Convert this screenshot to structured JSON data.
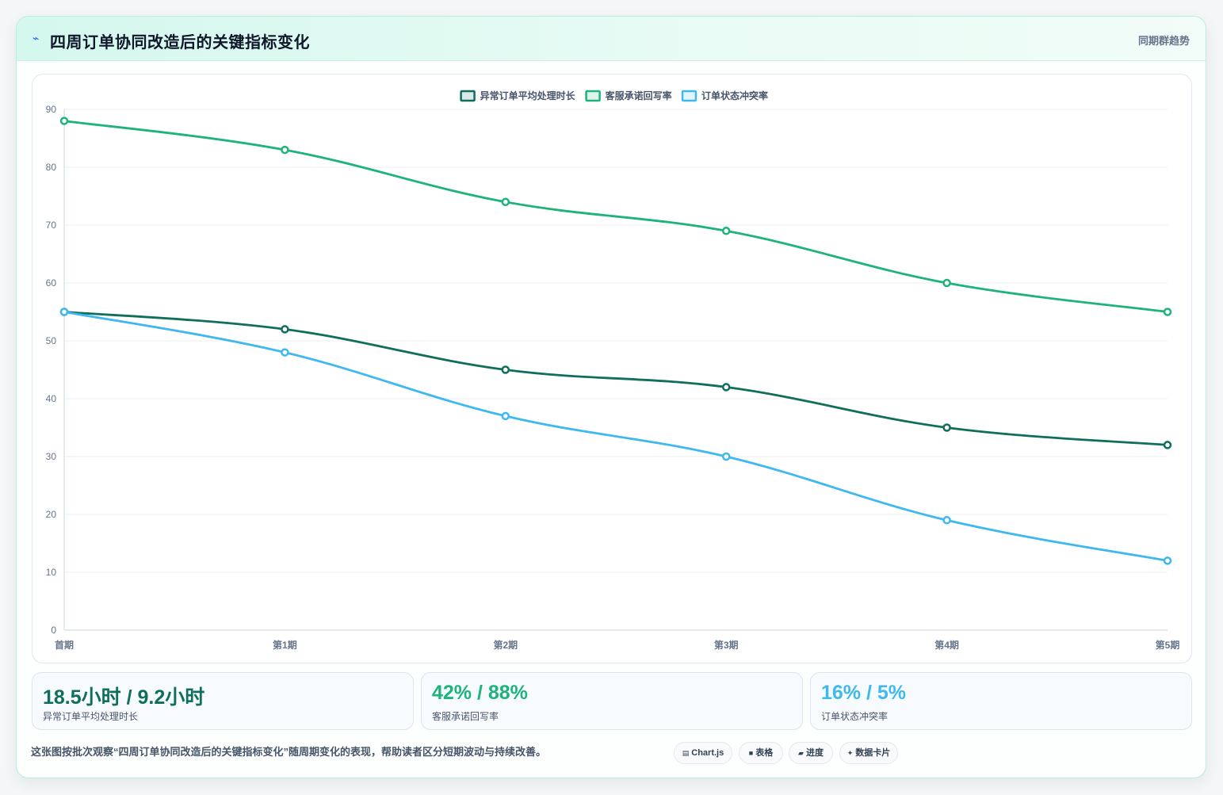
{
  "header": {
    "title_icon": "trend-spark-icon",
    "title": "四周订单协同改造后的关键指标变化",
    "subtitle": "同期群趋势"
  },
  "colors": {
    "series1": "#0f6e5c",
    "series2": "#1db37a",
    "series3": "#3fb8ef"
  },
  "chart_data": {
    "type": "line",
    "categories": [
      "首期",
      "第1期",
      "第2期",
      "第3期",
      "第4期",
      "第5期"
    ],
    "ylim": [
      0,
      90
    ],
    "yticks": [
      0,
      10,
      20,
      30,
      40,
      50,
      60,
      70,
      80,
      90
    ],
    "grid": true,
    "legend_position": "top-center",
    "series": [
      {
        "name": "异常订单平均处理时长",
        "color": "#0f6e5c",
        "values": [
          55,
          52,
          45,
          42,
          35,
          32
        ]
      },
      {
        "name": "客服承诺回写率",
        "color": "#1db37a",
        "values": [
          88,
          83,
          74,
          69,
          60,
          55
        ]
      },
      {
        "name": "订单状态冲突率",
        "color": "#3fb8ef",
        "values": [
          55,
          48,
          37,
          30,
          19,
          12
        ]
      }
    ]
  },
  "kpis": [
    {
      "value": "18.5小时 / 9.2小时",
      "label": "异常订单平均处理时长",
      "color": "#0f6e5c"
    },
    {
      "value": "42% / 88%",
      "label": "客服承诺回写率",
      "color": "#1db37a"
    },
    {
      "value": "16% / 5%",
      "label": "订单状态冲突率",
      "color": "#3fb8ef"
    }
  ],
  "footer": {
    "text": "这张图按批次观察“四周订单协同改造后的关键指标变化”随周期变化的表现，帮助读者区分短期波动与持续改善。",
    "chips": [
      {
        "icon": "▤",
        "icon_name": "chart-icon",
        "label": "Chart.js"
      },
      {
        "icon": "■",
        "icon_name": "table-icon",
        "label": "表格"
      },
      {
        "icon": "▰",
        "icon_name": "progress-icon",
        "label": "进度"
      },
      {
        "icon": "✦",
        "icon_name": "sparkle-icon",
        "label": "数据卡片"
      }
    ]
  }
}
